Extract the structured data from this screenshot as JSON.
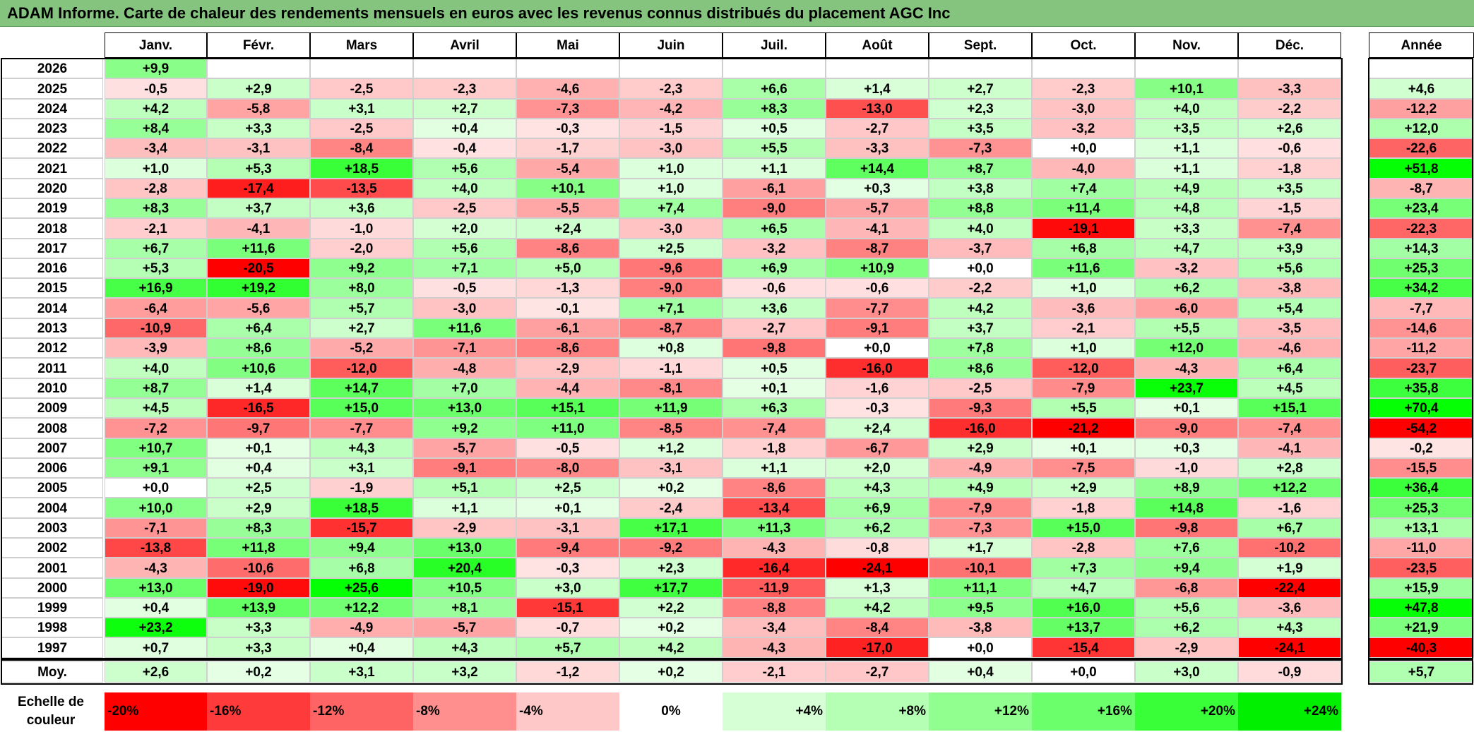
{
  "title": "ADAM Informe. Carte de chaleur des rendements mensuels en euros avec les revenus connus distribués du placement AGC Inc",
  "chart_data": {
    "type": "heatmap",
    "title": "ADAM Informe. Carte de chaleur des rendements mensuels en euros avec les revenus connus distribués du placement AGC Inc",
    "columns": [
      "Janv.",
      "Févr.",
      "Mars",
      "Avril",
      "Mai",
      "Juin",
      "Juil.",
      "Août",
      "Sept.",
      "Oct.",
      "Nov.",
      "Déc."
    ],
    "year_header": "Année",
    "rows": [
      {
        "year": "2026",
        "months": [
          "+9,9",
          "",
          "",
          "",
          "",
          "",
          "",
          "",
          "",
          "",
          "",
          ""
        ],
        "annual": ""
      },
      {
        "year": "2025",
        "months": [
          "-0,5",
          "+2,9",
          "-2,5",
          "-2,3",
          "-4,6",
          "-2,3",
          "+6,6",
          "+1,4",
          "+2,7",
          "-2,3",
          "+10,1",
          "-3,3"
        ],
        "annual": "+4,6"
      },
      {
        "year": "2024",
        "months": [
          "+4,2",
          "-5,8",
          "+3,1",
          "+2,7",
          "-7,3",
          "-4,2",
          "+8,3",
          "-13,0",
          "+2,3",
          "-3,0",
          "+4,0",
          "-2,2"
        ],
        "annual": "-12,2"
      },
      {
        "year": "2023",
        "months": [
          "+8,4",
          "+3,3",
          "-2,5",
          "+0,4",
          "-0,3",
          "-1,5",
          "+0,5",
          "-2,7",
          "+3,5",
          "-3,2",
          "+3,5",
          "+2,6"
        ],
        "annual": "+12,0"
      },
      {
        "year": "2022",
        "months": [
          "-3,4",
          "-3,1",
          "-8,4",
          "-0,4",
          "-1,7",
          "-3,0",
          "+5,5",
          "-3,3",
          "-7,3",
          "+0,0",
          "+1,1",
          "-0,6"
        ],
        "annual": "-22,6"
      },
      {
        "year": "2021",
        "months": [
          "+1,0",
          "+5,3",
          "+18,5",
          "+5,6",
          "-5,4",
          "+1,0",
          "+1,1",
          "+14,4",
          "+8,7",
          "-4,0",
          "+1,1",
          "-1,8"
        ],
        "annual": "+51,8"
      },
      {
        "year": "2020",
        "months": [
          "-2,8",
          "-17,4",
          "-13,5",
          "+4,0",
          "+10,1",
          "+1,0",
          "-6,1",
          "+0,3",
          "+3,8",
          "+7,4",
          "+4,9",
          "+3,5"
        ],
        "annual": "-8,7"
      },
      {
        "year": "2019",
        "months": [
          "+8,3",
          "+3,7",
          "+3,6",
          "-2,5",
          "-5,5",
          "+7,4",
          "-9,0",
          "-5,7",
          "+8,8",
          "+11,4",
          "+4,8",
          "-1,5"
        ],
        "annual": "+23,4"
      },
      {
        "year": "2018",
        "months": [
          "-2,1",
          "-4,1",
          "-1,0",
          "+2,0",
          "+2,4",
          "-3,0",
          "+6,5",
          "-4,1",
          "+4,0",
          "-19,1",
          "+3,3",
          "-7,4"
        ],
        "annual": "-22,3"
      },
      {
        "year": "2017",
        "months": [
          "+6,7",
          "+11,6",
          "-2,0",
          "+5,6",
          "-8,6",
          "+2,5",
          "-3,2",
          "-8,7",
          "-3,7",
          "+6,8",
          "+4,7",
          "+3,9"
        ],
        "annual": "+14,3"
      },
      {
        "year": "2016",
        "months": [
          "+5,3",
          "-20,5",
          "+9,2",
          "+7,1",
          "+5,0",
          "-9,6",
          "+6,9",
          "+10,9",
          "+0,0",
          "+11,6",
          "-3,2",
          "+5,6"
        ],
        "annual": "+25,3"
      },
      {
        "year": "2015",
        "months": [
          "+16,9",
          "+19,2",
          "+8,0",
          "-0,5",
          "-1,3",
          "-9,0",
          "-0,6",
          "-0,6",
          "-2,2",
          "+1,0",
          "+6,2",
          "-3,8"
        ],
        "annual": "+34,2"
      },
      {
        "year": "2014",
        "months": [
          "-6,4",
          "-5,6",
          "+5,7",
          "-3,0",
          "-0,1",
          "+7,1",
          "+3,6",
          "-7,7",
          "+4,2",
          "-3,6",
          "-6,0",
          "+5,4"
        ],
        "annual": "-7,7"
      },
      {
        "year": "2013",
        "months": [
          "-10,9",
          "+6,4",
          "+2,7",
          "+11,6",
          "-6,1",
          "-8,7",
          "-2,7",
          "-9,1",
          "+3,7",
          "-2,1",
          "+5,5",
          "-3,5"
        ],
        "annual": "-14,6"
      },
      {
        "year": "2012",
        "months": [
          "-3,9",
          "+8,6",
          "-5,2",
          "-7,1",
          "-8,6",
          "+0,8",
          "-9,8",
          "+0,0",
          "+7,8",
          "+1,0",
          "+12,0",
          "-4,6"
        ],
        "annual": "-11,2"
      },
      {
        "year": "2011",
        "months": [
          "+4,0",
          "+10,6",
          "-12,0",
          "-4,8",
          "-2,9",
          "-1,1",
          "+0,5",
          "-16,0",
          "+8,6",
          "-12,0",
          "-4,3",
          "+6,4"
        ],
        "annual": "-23,7"
      },
      {
        "year": "2010",
        "months": [
          "+8,7",
          "+1,4",
          "+14,7",
          "+7,0",
          "-4,4",
          "-8,1",
          "+0,1",
          "-1,6",
          "-2,5",
          "-7,9",
          "+23,7",
          "+4,5"
        ],
        "annual": "+35,8"
      },
      {
        "year": "2009",
        "months": [
          "+4,5",
          "-16,5",
          "+15,0",
          "+13,0",
          "+15,1",
          "+11,9",
          "+6,3",
          "-0,3",
          "-9,3",
          "+5,5",
          "+0,1",
          "+15,1"
        ],
        "annual": "+70,4"
      },
      {
        "year": "2008",
        "months": [
          "-7,2",
          "-9,7",
          "-7,7",
          "+9,2",
          "+11,0",
          "-8,5",
          "-7,4",
          "+2,4",
          "-16,0",
          "-21,2",
          "-9,0",
          "-7,4"
        ],
        "annual": "-54,2"
      },
      {
        "year": "2007",
        "months": [
          "+10,7",
          "+0,1",
          "+4,3",
          "-5,7",
          "-0,5",
          "+1,2",
          "-1,8",
          "-6,7",
          "+2,9",
          "+0,1",
          "+0,3",
          "-4,1"
        ],
        "annual": "-0,2"
      },
      {
        "year": "2006",
        "months": [
          "+9,1",
          "+0,4",
          "+3,1",
          "-9,1",
          "-8,0",
          "-3,1",
          "+1,1",
          "+2,0",
          "-4,9",
          "-7,5",
          "-1,0",
          "+2,8"
        ],
        "annual": "-15,5"
      },
      {
        "year": "2005",
        "months": [
          "+0,0",
          "+2,5",
          "-1,9",
          "+5,1",
          "+2,5",
          "+0,2",
          "-8,6",
          "+4,3",
          "+4,9",
          "+2,9",
          "+8,9",
          "+12,2"
        ],
        "annual": "+36,4"
      },
      {
        "year": "2004",
        "months": [
          "+10,0",
          "+2,9",
          "+18,5",
          "+1,1",
          "+0,1",
          "-2,4",
          "-13,4",
          "+6,9",
          "-7,9",
          "-1,8",
          "+14,8",
          "-1,6"
        ],
        "annual": "+25,3"
      },
      {
        "year": "2003",
        "months": [
          "-7,1",
          "+8,3",
          "-15,7",
          "-2,9",
          "-3,1",
          "+17,1",
          "+11,3",
          "+6,2",
          "-7,3",
          "+15,0",
          "-9,8",
          "+6,7"
        ],
        "annual": "+13,1"
      },
      {
        "year": "2002",
        "months": [
          "-13,8",
          "+11,8",
          "+9,4",
          "+13,0",
          "-9,4",
          "-9,2",
          "-4,3",
          "-0,8",
          "+1,7",
          "-2,8",
          "+7,6",
          "-10,2"
        ],
        "annual": "-11,0"
      },
      {
        "year": "2001",
        "months": [
          "-4,3",
          "-10,6",
          "+6,8",
          "+20,4",
          "-0,3",
          "+2,3",
          "-16,4",
          "-24,1",
          "-10,1",
          "+7,3",
          "+9,4",
          "+1,9"
        ],
        "annual": "-23,5"
      },
      {
        "year": "2000",
        "months": [
          "+13,0",
          "-19,0",
          "+25,6",
          "+10,5",
          "+3,0",
          "+17,7",
          "-11,9",
          "+1,3",
          "+11,1",
          "+4,7",
          "-6,8",
          "-22,4"
        ],
        "annual": "+15,9"
      },
      {
        "year": "1999",
        "months": [
          "+0,4",
          "+13,9",
          "+12,2",
          "+8,1",
          "-15,1",
          "+2,2",
          "-8,8",
          "+4,2",
          "+9,5",
          "+16,0",
          "+5,6",
          "-3,6"
        ],
        "annual": "+47,8"
      },
      {
        "year": "1998",
        "months": [
          "+23,2",
          "+3,3",
          "-4,9",
          "-5,7",
          "-0,7",
          "+0,2",
          "-3,4",
          "-8,4",
          "-3,8",
          "+13,7",
          "+6,2",
          "+4,3"
        ],
        "annual": "+21,9"
      },
      {
        "year": "1997",
        "months": [
          "+0,7",
          "+3,3",
          "+0,4",
          "+4,3",
          "+5,7",
          "+4,2",
          "-4,3",
          "-17,0",
          "+0,0",
          "-15,4",
          "-2,9",
          "-24,1"
        ],
        "annual": "-40,3"
      }
    ],
    "average": {
      "label": "Moy.",
      "months": [
        "+2,6",
        "+0,2",
        "+3,1",
        "+3,2",
        "-1,2",
        "+0,2",
        "-2,1",
        "-2,7",
        "+0,4",
        "+0,0",
        "+3,0",
        "-0,9"
      ],
      "annual": "+5,7"
    },
    "scale": {
      "label": "Echelle de couleur",
      "values": [
        "-20%",
        "-16%",
        "-12%",
        "-8%",
        "-4%",
        "0%",
        "+4%",
        "+8%",
        "+12%",
        "+16%",
        "+20%",
        "+24%"
      ]
    },
    "colors": {
      "negative_max": "#ff0000",
      "positive_max": "#00ff00",
      "neutral": "#ffffff"
    }
  }
}
